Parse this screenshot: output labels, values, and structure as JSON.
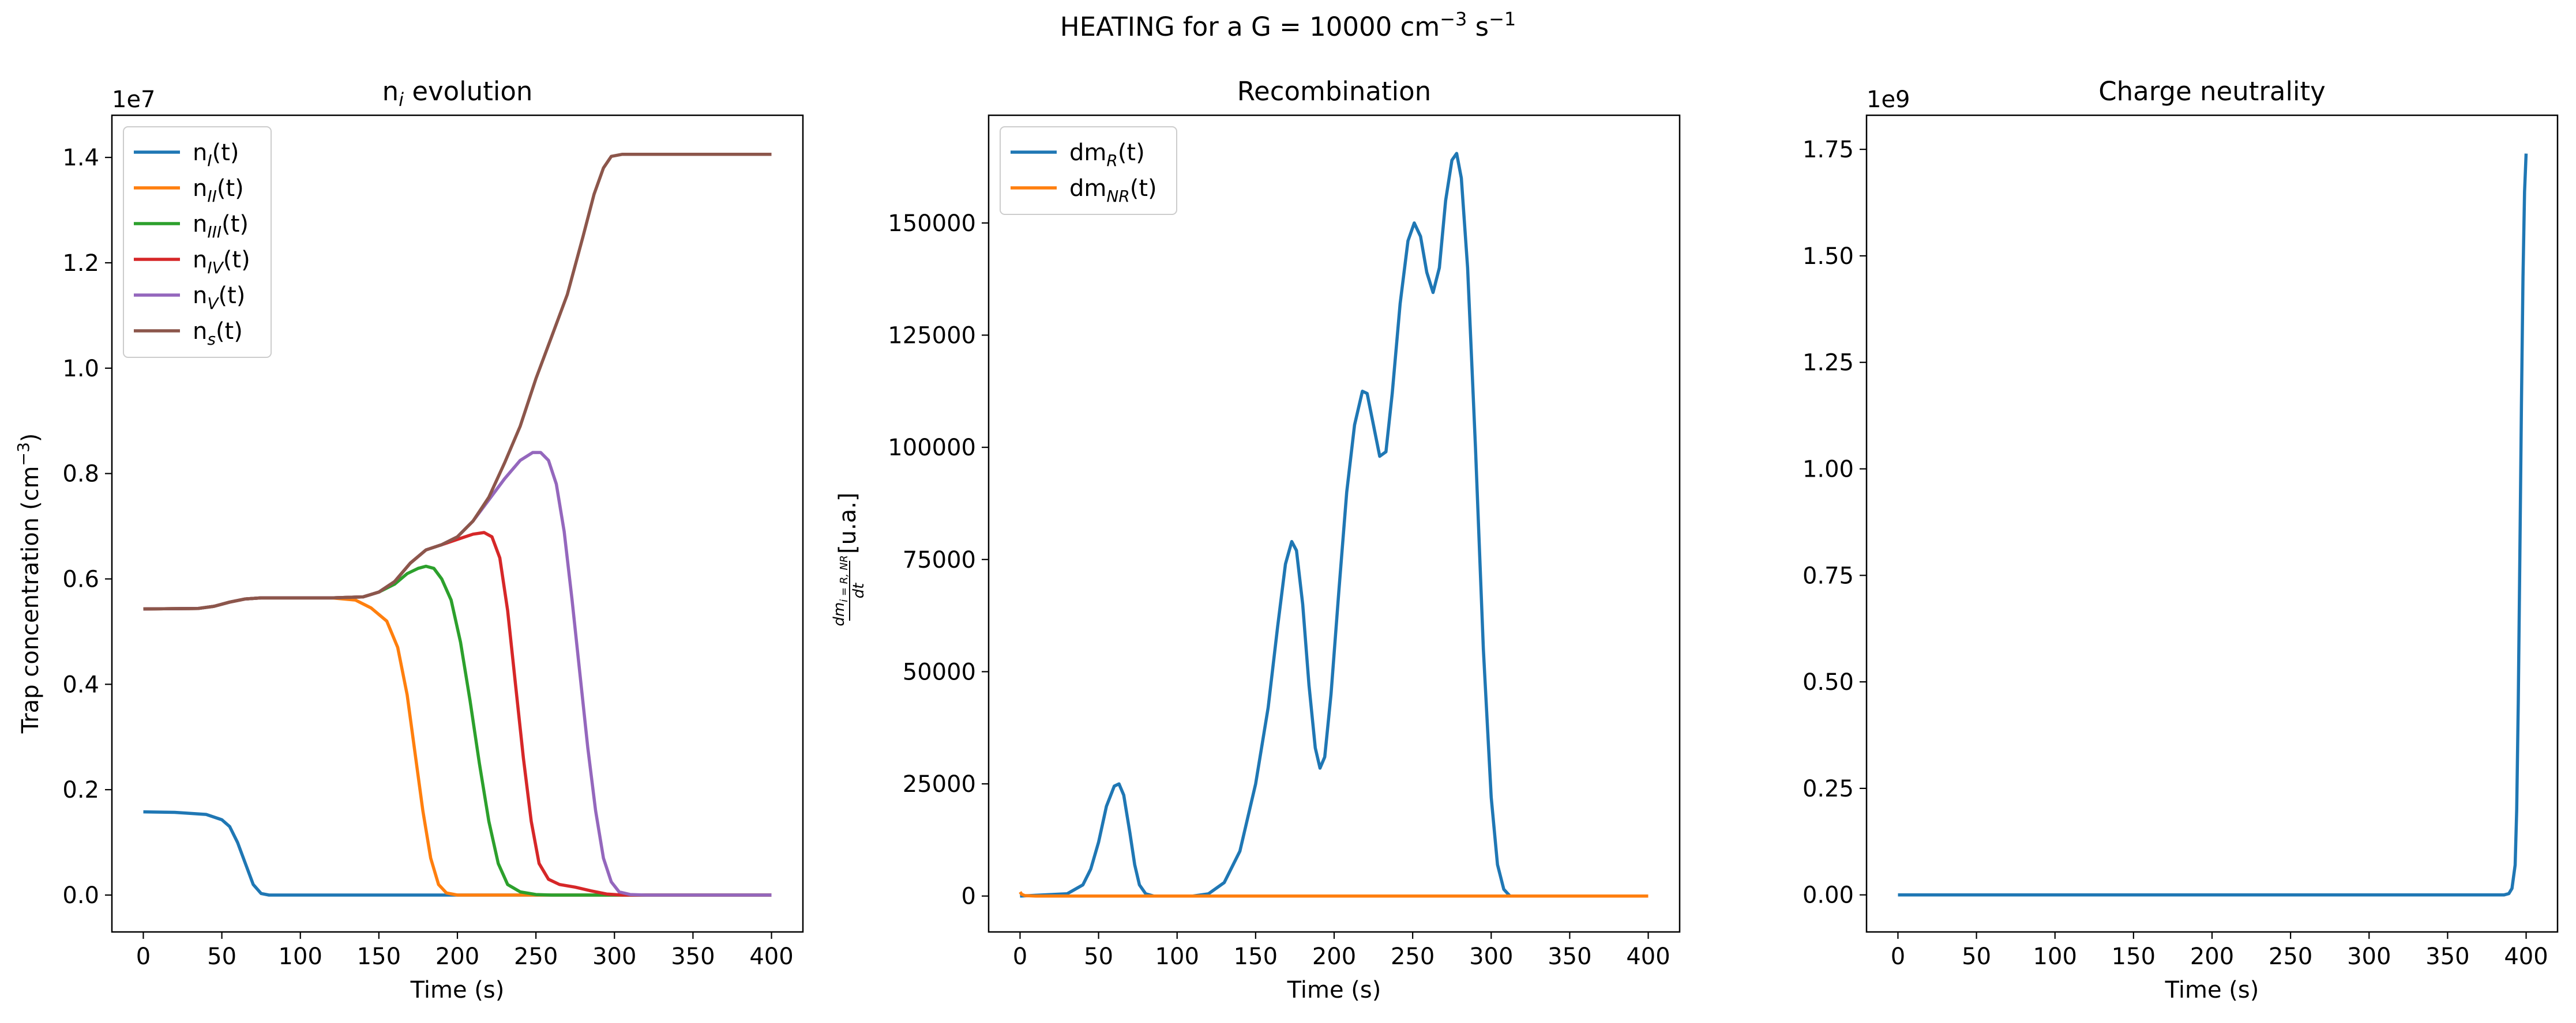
{
  "figure": {
    "title_prefix": "HEATING for a G = 10000 cm",
    "title_sup1": "−3",
    "title_mid": " s",
    "title_sup2": "−1"
  },
  "colors": {
    "blue": "#1f77b4",
    "orange": "#ff7f0e",
    "green": "#2ca02c",
    "red": "#d62728",
    "purple": "#9467bd",
    "brown": "#8c564b"
  },
  "chart_data": [
    {
      "type": "line",
      "title": "n_i evolution",
      "xlabel": "Time (s)",
      "ylabel": "Trap concentration (cm^-3)",
      "offset_text": "1e7",
      "xlim": [
        -20,
        420
      ],
      "ylim": [
        -700000,
        14800000
      ],
      "xticks": [
        0,
        50,
        100,
        150,
        200,
        250,
        300,
        350,
        400
      ],
      "yticks": [
        0,
        2000000,
        4000000,
        6000000,
        8000000,
        10000000,
        12000000,
        14000000
      ],
      "ytick_labels": [
        "0.0",
        "0.2",
        "0.4",
        "0.6",
        "0.8",
        "1.0",
        "1.2",
        "1.4"
      ],
      "legend_position": "upper-left",
      "series": [
        {
          "name": "n_I(t)",
          "color": "#1f77b4",
          "points": [
            [
              0,
              1580000
            ],
            [
              20,
              1570000
            ],
            [
              40,
              1530000
            ],
            [
              50,
              1430000
            ],
            [
              55,
              1300000
            ],
            [
              60,
              1000000
            ],
            [
              65,
              600000
            ],
            [
              70,
              200000
            ],
            [
              75,
              30000
            ],
            [
              80,
              0
            ],
            [
              400,
              0
            ]
          ]
        },
        {
          "name": "n_II(t)",
          "color": "#ff7f0e",
          "points": [
            [
              0,
              5430000
            ],
            [
              35,
              5440000
            ],
            [
              45,
              5480000
            ],
            [
              55,
              5560000
            ],
            [
              65,
              5620000
            ],
            [
              75,
              5640000
            ],
            [
              120,
              5640000
            ],
            [
              135,
              5600000
            ],
            [
              145,
              5450000
            ],
            [
              155,
              5200000
            ],
            [
              162,
              4700000
            ],
            [
              168,
              3800000
            ],
            [
              173,
              2700000
            ],
            [
              178,
              1600000
            ],
            [
              183,
              700000
            ],
            [
              188,
              200000
            ],
            [
              193,
              40000
            ],
            [
              200,
              0
            ],
            [
              400,
              0
            ]
          ]
        },
        {
          "name": "n_III(t)",
          "color": "#2ca02c",
          "points": [
            [
              0,
              5430000
            ],
            [
              35,
              5440000
            ],
            [
              45,
              5480000
            ],
            [
              55,
              5560000
            ],
            [
              65,
              5620000
            ],
            [
              75,
              5640000
            ],
            [
              120,
              5640000
            ],
            [
              140,
              5660000
            ],
            [
              150,
              5750000
            ],
            [
              160,
              5900000
            ],
            [
              168,
              6100000
            ],
            [
              175,
              6200000
            ],
            [
              180,
              6240000
            ],
            [
              185,
              6200000
            ],
            [
              190,
              6000000
            ],
            [
              196,
              5600000
            ],
            [
              202,
              4800000
            ],
            [
              208,
              3700000
            ],
            [
              214,
              2500000
            ],
            [
              220,
              1400000
            ],
            [
              226,
              600000
            ],
            [
              232,
              200000
            ],
            [
              240,
              60000
            ],
            [
              250,
              10000
            ],
            [
              260,
              0
            ],
            [
              400,
              0
            ]
          ]
        },
        {
          "name": "n_IV(t)",
          "color": "#d62728",
          "points": [
            [
              0,
              5430000
            ],
            [
              35,
              5440000
            ],
            [
              45,
              5480000
            ],
            [
              55,
              5560000
            ],
            [
              65,
              5620000
            ],
            [
              75,
              5640000
            ],
            [
              120,
              5640000
            ],
            [
              140,
              5660000
            ],
            [
              150,
              5750000
            ],
            [
              160,
              5950000
            ],
            [
              170,
              6300000
            ],
            [
              180,
              6550000
            ],
            [
              190,
              6650000
            ],
            [
              200,
              6750000
            ],
            [
              210,
              6850000
            ],
            [
              217,
              6880000
            ],
            [
              222,
              6800000
            ],
            [
              227,
              6400000
            ],
            [
              232,
              5400000
            ],
            [
              237,
              4000000
            ],
            [
              242,
              2600000
            ],
            [
              247,
              1400000
            ],
            [
              252,
              600000
            ],
            [
              258,
              300000
            ],
            [
              265,
              200000
            ],
            [
              275,
              150000
            ],
            [
              285,
              80000
            ],
            [
              295,
              20000
            ],
            [
              305,
              0
            ],
            [
              400,
              0
            ]
          ]
        },
        {
          "name": "n_V(t)",
          "color": "#9467bd",
          "points": [
            [
              0,
              5430000
            ],
            [
              35,
              5440000
            ],
            [
              45,
              5480000
            ],
            [
              55,
              5560000
            ],
            [
              65,
              5620000
            ],
            [
              75,
              5640000
            ],
            [
              120,
              5640000
            ],
            [
              140,
              5660000
            ],
            [
              150,
              5750000
            ],
            [
              160,
              5950000
            ],
            [
              170,
              6300000
            ],
            [
              180,
              6550000
            ],
            [
              190,
              6650000
            ],
            [
              200,
              6800000
            ],
            [
              210,
              7100000
            ],
            [
              220,
              7500000
            ],
            [
              230,
              7900000
            ],
            [
              240,
              8250000
            ],
            [
              248,
              8400000
            ],
            [
              253,
              8400000
            ],
            [
              258,
              8250000
            ],
            [
              263,
              7800000
            ],
            [
              268,
              6900000
            ],
            [
              273,
              5600000
            ],
            [
              278,
              4200000
            ],
            [
              283,
              2800000
            ],
            [
              288,
              1600000
            ],
            [
              293,
              700000
            ],
            [
              298,
              250000
            ],
            [
              303,
              60000
            ],
            [
              310,
              10000
            ],
            [
              320,
              0
            ],
            [
              400,
              0
            ]
          ]
        },
        {
          "name": "n_s(t)",
          "color": "#8c564b",
          "points": [
            [
              0,
              5430000
            ],
            [
              35,
              5440000
            ],
            [
              45,
              5480000
            ],
            [
              55,
              5560000
            ],
            [
              65,
              5620000
            ],
            [
              75,
              5640000
            ],
            [
              120,
              5640000
            ],
            [
              140,
              5660000
            ],
            [
              150,
              5750000
            ],
            [
              160,
              5950000
            ],
            [
              170,
              6300000
            ],
            [
              180,
              6550000
            ],
            [
              190,
              6650000
            ],
            [
              200,
              6800000
            ],
            [
              210,
              7100000
            ],
            [
              220,
              7550000
            ],
            [
              230,
              8200000
            ],
            [
              240,
              8900000
            ],
            [
              250,
              9800000
            ],
            [
              260,
              10600000
            ],
            [
              270,
              11400000
            ],
            [
              280,
              12500000
            ],
            [
              287,
              13300000
            ],
            [
              293,
              13800000
            ],
            [
              298,
              14020000
            ],
            [
              305,
              14060000
            ],
            [
              400,
              14060000
            ]
          ]
        }
      ]
    },
    {
      "type": "line",
      "title": "Recombination",
      "xlabel": "Time (s)",
      "ylabel": "dm_{i=R,NR}/dt [u.a.]",
      "xlim": [
        -20,
        420
      ],
      "ylim": [
        -8000,
        174000
      ],
      "xticks": [
        0,
        50,
        100,
        150,
        200,
        250,
        300,
        350,
        400
      ],
      "yticks": [
        0,
        25000,
        50000,
        75000,
        100000,
        125000,
        150000
      ],
      "ytick_labels": [
        "0",
        "25000",
        "50000",
        "75000",
        "100000",
        "125000",
        "150000"
      ],
      "legend_position": "upper-left",
      "series": [
        {
          "name": "dm_R(t)",
          "color": "#1f77b4",
          "points": [
            [
              0,
              0
            ],
            [
              30,
              500
            ],
            [
              40,
              2500
            ],
            [
              45,
              6000
            ],
            [
              50,
              12000
            ],
            [
              55,
              20000
            ],
            [
              60,
              24500
            ],
            [
              63,
              25000
            ],
            [
              66,
              22500
            ],
            [
              70,
              14000
            ],
            [
              73,
              7000
            ],
            [
              76,
              2500
            ],
            [
              80,
              500
            ],
            [
              85,
              0
            ],
            [
              110,
              0
            ],
            [
              120,
              500
            ],
            [
              130,
              3000
            ],
            [
              140,
              10000
            ],
            [
              150,
              25000
            ],
            [
              158,
              42000
            ],
            [
              164,
              60000
            ],
            [
              169,
              74000
            ],
            [
              173,
              79000
            ],
            [
              176,
              77000
            ],
            [
              180,
              65000
            ],
            [
              184,
              47000
            ],
            [
              188,
              33000
            ],
            [
              191,
              28500
            ],
            [
              194,
              31000
            ],
            [
              198,
              45000
            ],
            [
              203,
              68000
            ],
            [
              208,
              90000
            ],
            [
              213,
              105000
            ],
            [
              218,
              112500
            ],
            [
              221,
              112000
            ],
            [
              225,
              105000
            ],
            [
              229,
              98000
            ],
            [
              233,
              99000
            ],
            [
              237,
              112000
            ],
            [
              242,
              132000
            ],
            [
              247,
              146000
            ],
            [
              251,
              150000
            ],
            [
              255,
              147000
            ],
            [
              259,
              139000
            ],
            [
              263,
              134500
            ],
            [
              267,
              140000
            ],
            [
              271,
              155000
            ],
            [
              275,
              164000
            ],
            [
              278,
              165500
            ],
            [
              281,
              160000
            ],
            [
              285,
              140000
            ],
            [
              290,
              100000
            ],
            [
              295,
              55000
            ],
            [
              300,
              22000
            ],
            [
              304,
              7000
            ],
            [
              308,
              1500
            ],
            [
              312,
              0
            ],
            [
              400,
              0
            ]
          ]
        },
        {
          "name": "dm_NR(t)",
          "color": "#ff7f0e",
          "points": [
            [
              0,
              900
            ],
            [
              1,
              400
            ],
            [
              3,
              100
            ],
            [
              10,
              0
            ],
            [
              400,
              0
            ]
          ]
        }
      ]
    },
    {
      "type": "line",
      "title": "Charge neutrality",
      "xlabel": "Time (s)",
      "ylabel": "",
      "offset_text": "1e9",
      "xlim": [
        -20,
        420
      ],
      "ylim": [
        -87000000,
        1830000000
      ],
      "xticks": [
        0,
        50,
        100,
        150,
        200,
        250,
        300,
        350,
        400
      ],
      "yticks": [
        0,
        250000000,
        500000000,
        750000000,
        1000000000,
        1250000000,
        1500000000,
        1750000000
      ],
      "ytick_labels": [
        "0.00",
        "0.25",
        "0.50",
        "0.75",
        "1.00",
        "1.25",
        "1.50",
        "1.75"
      ],
      "legend_position": "none",
      "series": [
        {
          "name": "",
          "color": "#1f77b4",
          "points": [
            [
              0,
              0
            ],
            [
              386,
              0
            ],
            [
              389,
              3000000
            ],
            [
              391,
              15000000
            ],
            [
              393,
              70000000
            ],
            [
              394,
              200000000
            ],
            [
              395,
              450000000
            ],
            [
              396,
              800000000
            ],
            [
              397,
              1150000000
            ],
            [
              398,
              1450000000
            ],
            [
              399,
              1650000000
            ],
            [
              400,
              1740000000
            ]
          ]
        }
      ]
    }
  ],
  "legends": [
    [
      {
        "base": "n",
        "sub": "I",
        "tail": "(t)"
      },
      {
        "base": "n",
        "sub": "II",
        "tail": "(t)"
      },
      {
        "base": "n",
        "sub": "III",
        "tail": "(t)"
      },
      {
        "base": "n",
        "sub": "IV",
        "tail": "(t)"
      },
      {
        "base": "n",
        "sub": "V",
        "tail": "(t)"
      },
      {
        "base": "n",
        "sub": "s",
        "tail": "(t)"
      }
    ],
    [
      {
        "base": "dm",
        "sub": "R",
        "tail": "(t)"
      },
      {
        "base": "dm",
        "sub": "NR",
        "tail": "(t)"
      }
    ]
  ],
  "labels": {
    "p1_title_base": "n",
    "p1_title_sub": "i",
    "p1_title_tail": " evolution",
    "p1_ylabel_base": "Trap concentration (cm",
    "p1_ylabel_sup": "−3",
    "p1_ylabel_tail": ")",
    "p2_ylabel_num": "dm",
    "p2_ylabel_num_sub": "i = R, NR",
    "p2_ylabel_den": "dt",
    "p2_ylabel_tail": "[u.a.]"
  }
}
